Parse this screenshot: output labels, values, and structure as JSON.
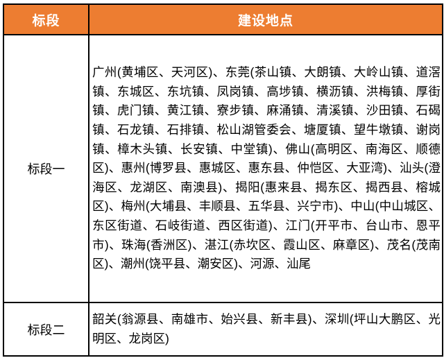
{
  "colors": {
    "header_bg": "#ED7D31",
    "header_text": "#FFFFFF",
    "border": "#000000",
    "body_text": "#000000"
  },
  "table": {
    "headers": [
      {
        "label": "标段"
      },
      {
        "label": "建设地点"
      }
    ],
    "rows": [
      {
        "section": "标段一",
        "locations": "广州(黄埔区、天河区)、东莞(茶山镇、大朗镇、大岭山镇、道滘镇、东城区、东坑镇、凤岗镇、高埗镇、横沥镇、洪梅镇、厚街镇、虎门镇、黄江镇、寮步镇、麻涌镇、清溪镇、沙田镇、石碣镇、石龙镇、石排镇、松山湖管委会、塘厦镇、望牛墩镇、谢岗镇、樟木头镇、长安镇、中堂镇)、佛山(高明区、南海区、顺德区)、惠州(博罗县、惠城区、惠东县、仲恺区、大亚湾)、汕头(澄海区、龙湖区、南澳县)、揭阳(惠来县、揭东区、揭西县、榕城区)、梅州(大埔县、丰顺县、五华县、兴宁市)、中山(中山城区、东区街道、石岐街道、西区街道)、江门(开平市、台山市、恩平市)、珠海(香洲区)、湛江(赤坎区、霞山区、麻章区)、茂名(茂南区)、潮州(饶平县、潮安区)、河源、汕尾"
      },
      {
        "section": "标段二",
        "locations": "韶关(翁源县、南雄市、始兴县、新丰县)、深圳(坪山大鹏区、光明区、龙岗区)"
      }
    ]
  }
}
